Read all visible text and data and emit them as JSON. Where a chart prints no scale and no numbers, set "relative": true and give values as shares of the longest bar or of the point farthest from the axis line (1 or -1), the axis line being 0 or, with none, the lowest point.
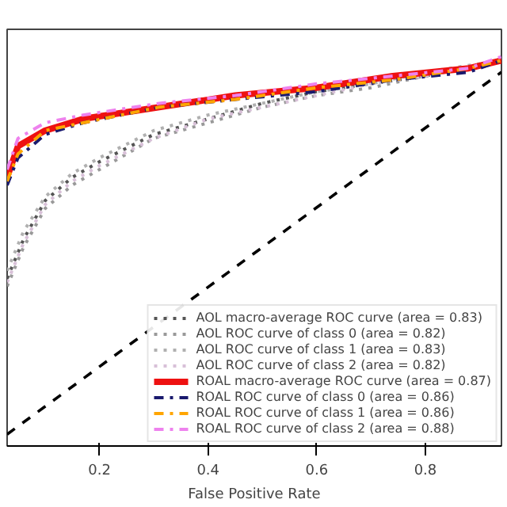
{
  "chart_data": {
    "type": "line",
    "xlabel": "False Positive Rate",
    "xlim": [
      0.03,
      0.94
    ],
    "relative": true,
    "xticks": [
      0.2,
      0.4,
      0.6,
      0.8
    ],
    "tick_labels": "x",
    "legend": "bottom right",
    "marker": "none",
    "series": [
      {
        "color": "#000000",
        "line_style": "dashed",
        "x": [
          0.03,
          0.94
        ],
        "values": [
          0.03,
          0.96
        ]
      },
      {
        "name": "AOL macro-average ROC curve (area = 0.83)",
        "color": "#555555",
        "line_style": "dotted",
        "x": [
          0.03,
          0.06,
          0.1,
          0.15,
          0.2,
          0.3,
          0.4,
          0.5,
          0.6,
          0.7,
          0.8,
          0.94
        ],
        "values": [
          0.43,
          0.53,
          0.63,
          0.69,
          0.73,
          0.8,
          0.84,
          0.88,
          0.91,
          0.93,
          0.95,
          0.99
        ]
      },
      {
        "name": "AOL ROC curve of class 0 (area = 0.82)",
        "color": "#999999",
        "line_style": "dotted",
        "x": [
          0.03,
          0.06,
          0.1,
          0.15,
          0.2,
          0.3,
          0.4,
          0.5,
          0.6,
          0.7,
          0.8,
          0.94
        ],
        "values": [
          0.41,
          0.51,
          0.61,
          0.67,
          0.71,
          0.79,
          0.83,
          0.87,
          0.9,
          0.92,
          0.95,
          0.99
        ]
      },
      {
        "name": "AOL ROC curve of class 1 (area = 0.83)",
        "color": "#b0b0b0",
        "line_style": "dotted",
        "x": [
          0.03,
          0.06,
          0.1,
          0.15,
          0.2,
          0.3,
          0.4,
          0.5,
          0.6,
          0.7,
          0.8,
          0.94
        ],
        "values": [
          0.45,
          0.55,
          0.64,
          0.7,
          0.74,
          0.81,
          0.85,
          0.88,
          0.91,
          0.93,
          0.96,
          0.99
        ]
      },
      {
        "name": "AOL ROC curve of class 2 (area = 0.82)",
        "color": "#d8c0d8",
        "line_style": "dotted",
        "x": [
          0.03,
          0.06,
          0.1,
          0.15,
          0.2,
          0.3,
          0.4,
          0.5,
          0.6,
          0.7,
          0.8,
          0.94
        ],
        "values": [
          0.42,
          0.52,
          0.62,
          0.68,
          0.72,
          0.79,
          0.84,
          0.87,
          0.9,
          0.93,
          0.95,
          0.99
        ]
      },
      {
        "name": "ROAL macro-average ROC curve (area = 0.87)",
        "color": "#ee1111",
        "line_style": "solid",
        "x": [
          0.03,
          0.05,
          0.1,
          0.17,
          0.31,
          0.45,
          0.6,
          0.74,
          0.88,
          0.94
        ],
        "values": [
          0.69,
          0.77,
          0.81,
          0.84,
          0.87,
          0.9,
          0.92,
          0.95,
          0.97,
          0.99
        ]
      },
      {
        "name": "ROAL ROC curve of class 0 (area = 0.86)",
        "color": "#1a1a6e",
        "line_style": "dashdot",
        "x": [
          0.03,
          0.05,
          0.1,
          0.17,
          0.31,
          0.45,
          0.6,
          0.74,
          0.88,
          0.94
        ],
        "values": [
          0.67,
          0.74,
          0.8,
          0.83,
          0.87,
          0.89,
          0.91,
          0.94,
          0.96,
          0.99
        ]
      },
      {
        "name": "ROAL ROC curve of class 1 (area = 0.86)",
        "color": "#ffa500",
        "line_style": "dashdot",
        "x": [
          0.03,
          0.05,
          0.1,
          0.17,
          0.31,
          0.45,
          0.6,
          0.74,
          0.88,
          0.94
        ],
        "values": [
          0.68,
          0.75,
          0.81,
          0.83,
          0.87,
          0.89,
          0.92,
          0.94,
          0.97,
          0.99
        ]
      },
      {
        "name": "ROAL ROC curve of class 2 (area = 0.88)",
        "color": "#ee82ee",
        "line_style": "dashdot",
        "x": [
          0.03,
          0.05,
          0.1,
          0.17,
          0.31,
          0.45,
          0.6,
          0.74,
          0.88,
          0.94
        ],
        "values": [
          0.71,
          0.79,
          0.83,
          0.85,
          0.88,
          0.9,
          0.93,
          0.95,
          0.97,
          1
        ]
      }
    ]
  }
}
